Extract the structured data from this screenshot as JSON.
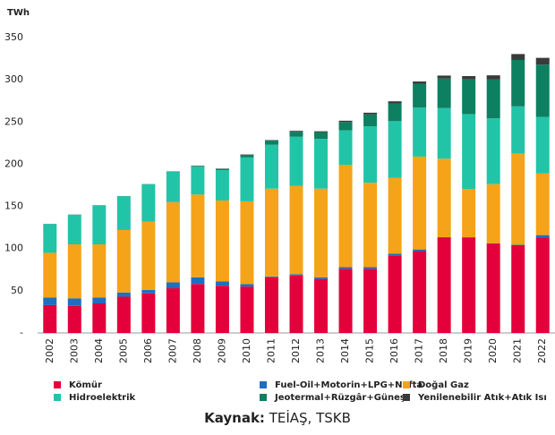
{
  "chart_data": {
    "type": "stacked_bar",
    "y_label": "TWh",
    "categories": [
      "2002",
      "2003",
      "2004",
      "2005",
      "2006",
      "2007",
      "2008",
      "2009",
      "2010",
      "2011",
      "2012",
      "2013",
      "2014",
      "2015",
      "2016",
      "2017",
      "2018",
      "2019",
      "2020",
      "2021",
      "2022"
    ],
    "series": [
      {
        "name": "Kömür",
        "color": "#e4003a",
        "values": [
          33,
          32,
          35,
          43,
          47,
          53,
          58,
          56,
          55,
          66,
          68,
          64,
          76,
          76,
          92,
          97,
          113,
          113,
          106,
          104,
          113
        ]
      },
      {
        "name": "Fuel-Oil+Motorin+LPG+Nafta",
        "color": "#1f6fc0",
        "values": [
          9,
          9,
          7,
          5,
          4,
          7,
          8,
          5,
          3,
          1,
          1.5,
          2,
          2,
          2,
          2,
          2,
          0.5,
          0.4,
          0.3,
          0.5,
          3
        ]
      },
      {
        "name": "Doğal Gaz",
        "color": "#f5a318",
        "values": [
          53,
          64,
          63,
          74,
          81,
          95,
          98,
          96,
          98,
          104,
          105,
          105,
          121,
          100,
          90,
          110,
          93,
          57,
          70,
          108,
          73
        ]
      },
      {
        "name": "Hidroelektrik",
        "color": "#22c4a8",
        "values": [
          34,
          35,
          46,
          40,
          44,
          36,
          33,
          36,
          52,
          52,
          58,
          59,
          41,
          67,
          67,
          58,
          60,
          89,
          78,
          56,
          67
        ]
      },
      {
        "name": "Jeotermal+Rüzgâr+Güneş",
        "color": "#0c8060",
        "values": [
          0.2,
          0.2,
          0.3,
          0.2,
          0.3,
          0.4,
          1,
          1.5,
          3,
          5,
          6,
          8,
          10,
          14,
          21,
          28,
          35,
          41,
          46,
          55,
          62
        ]
      },
      {
        "name": "Yenilenebilir Atık+Atık Isı",
        "color": "#3a3a3a",
        "values": [
          0.1,
          0.1,
          0.1,
          0.1,
          0.1,
          0.1,
          0.2,
          0.3,
          0.5,
          0.5,
          1,
          1,
          1.5,
          2,
          2.5,
          3,
          3.5,
          4,
          5,
          7,
          8
        ]
      }
    ],
    "ylim": [
      0,
      350
    ],
    "yticks": [
      {
        "value": 0,
        "label": "-"
      },
      50,
      100,
      150,
      200,
      250,
      300,
      350
    ],
    "source_label": "Kaynak:",
    "source": "TEİAŞ, TSKB"
  }
}
